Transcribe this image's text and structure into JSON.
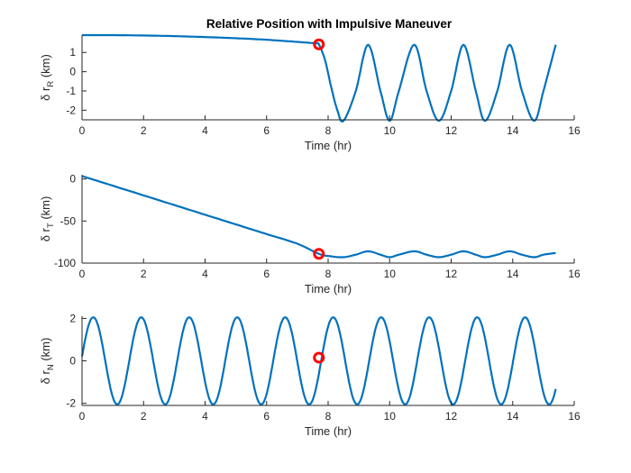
{
  "figure": {
    "title": "Relative Position with Impulsive Maneuver"
  },
  "style": {
    "line_color": "#0072BD",
    "marker_color": "#FF0000"
  },
  "chart_data": [
    {
      "type": "line",
      "title": "Relative Position with Impulsive Maneuver",
      "xlabel": "Time (hr)",
      "ylabel_prefix": "δ r",
      "ylabel_subscript": "R",
      "ylabel_suffix": " (km)",
      "xlim": [
        0,
        16
      ],
      "ylim": [
        -2.5,
        1.9
      ],
      "xticks": [
        0,
        2,
        4,
        6,
        8,
        10,
        12,
        14,
        16
      ],
      "yticks": [
        -2,
        -1,
        0,
        1
      ],
      "grid": false,
      "series": [
        {
          "x": [
            0,
            1,
            2,
            3,
            4,
            5,
            6,
            7,
            7.6,
            7.7,
            7.9,
            8.1,
            8.3,
            8.5,
            8.9,
            9.3,
            9.7,
            10.0,
            10.3,
            10.8,
            11.2,
            11.6,
            12.0,
            12.4,
            12.8,
            13.1,
            13.5,
            13.9,
            14.3,
            14.7,
            15.0,
            15.4
          ],
          "y": [
            1.9,
            1.9,
            1.88,
            1.85,
            1.8,
            1.74,
            1.66,
            1.55,
            1.47,
            1.42,
            0.6,
            -0.8,
            -2.0,
            -2.55,
            -1.0,
            1.4,
            -1.0,
            -2.55,
            -1.0,
            1.4,
            -1.0,
            -2.55,
            -1.0,
            1.4,
            -1.0,
            -2.55,
            -1.0,
            1.4,
            -1.0,
            -2.55,
            -1.0,
            1.4
          ]
        }
      ],
      "marker": {
        "x": 7.7,
        "y": 1.42
      }
    },
    {
      "type": "line",
      "xlabel": "Time (hr)",
      "ylabel_prefix": "δ r",
      "ylabel_subscript": "T",
      "ylabel_suffix": " (km)",
      "xlim": [
        0,
        16
      ],
      "ylim": [
        -100,
        5
      ],
      "xticks": [
        0,
        2,
        4,
        6,
        8,
        10,
        12,
        14,
        16
      ],
      "yticks": [
        -100,
        -50,
        0
      ],
      "grid": false,
      "series": [
        {
          "x": [
            0,
            1,
            2,
            3,
            4,
            5,
            6,
            7,
            7.7,
            8.1,
            8.5,
            8.9,
            9.3,
            9.7,
            10.0,
            10.3,
            10.8,
            11.2,
            11.6,
            12.0,
            12.4,
            12.8,
            13.1,
            13.5,
            13.9,
            14.3,
            14.7,
            15.0,
            15.4
          ],
          "y": [
            3.5,
            -8,
            -19.5,
            -31,
            -42.5,
            -54,
            -65.5,
            -77,
            -89,
            -92,
            -93,
            -90,
            -86,
            -90,
            -93,
            -90,
            -86,
            -90,
            -93,
            -90,
            -86,
            -90,
            -93,
            -90,
            -86,
            -90,
            -93,
            -90,
            -88
          ]
        }
      ],
      "marker": {
        "x": 7.7,
        "y": -89
      }
    },
    {
      "type": "line",
      "xlabel": "Time (hr)",
      "ylabel_prefix": "δ r",
      "ylabel_subscript": "N",
      "ylabel_suffix": " (km)",
      "xlim": [
        0,
        16
      ],
      "ylim": [
        -2.1,
        2.1
      ],
      "xticks": [
        0,
        2,
        4,
        6,
        8,
        10,
        12,
        14,
        16
      ],
      "yticks": [
        -2,
        0,
        2
      ],
      "grid": false,
      "series": [
        {
          "x": [
            0,
            0.39,
            1.17,
            1.95,
            2.73,
            3.51,
            4.29,
            5.07,
            5.85,
            6.63,
            7.41,
            8.19,
            8.97,
            9.75,
            10.53,
            11.31,
            12.09,
            12.87,
            13.65,
            14.43,
            15.21,
            15.4
          ],
          "y": [
            0.2,
            2.05,
            -2.05,
            2.05,
            -2.05,
            2.05,
            -2.05,
            2.05,
            -2.05,
            2.05,
            -2.05,
            2.05,
            -2.05,
            2.05,
            -2.05,
            2.05,
            -2.05,
            2.05,
            -2.05,
            2.05,
            -2.05,
            0.15
          ],
          "shape": "sine",
          "period_hr": 1.56,
          "amplitude_km": 2.05,
          "phase_hr": 0.0
        }
      ],
      "marker": {
        "x": 7.7,
        "y": 0.15
      }
    }
  ]
}
